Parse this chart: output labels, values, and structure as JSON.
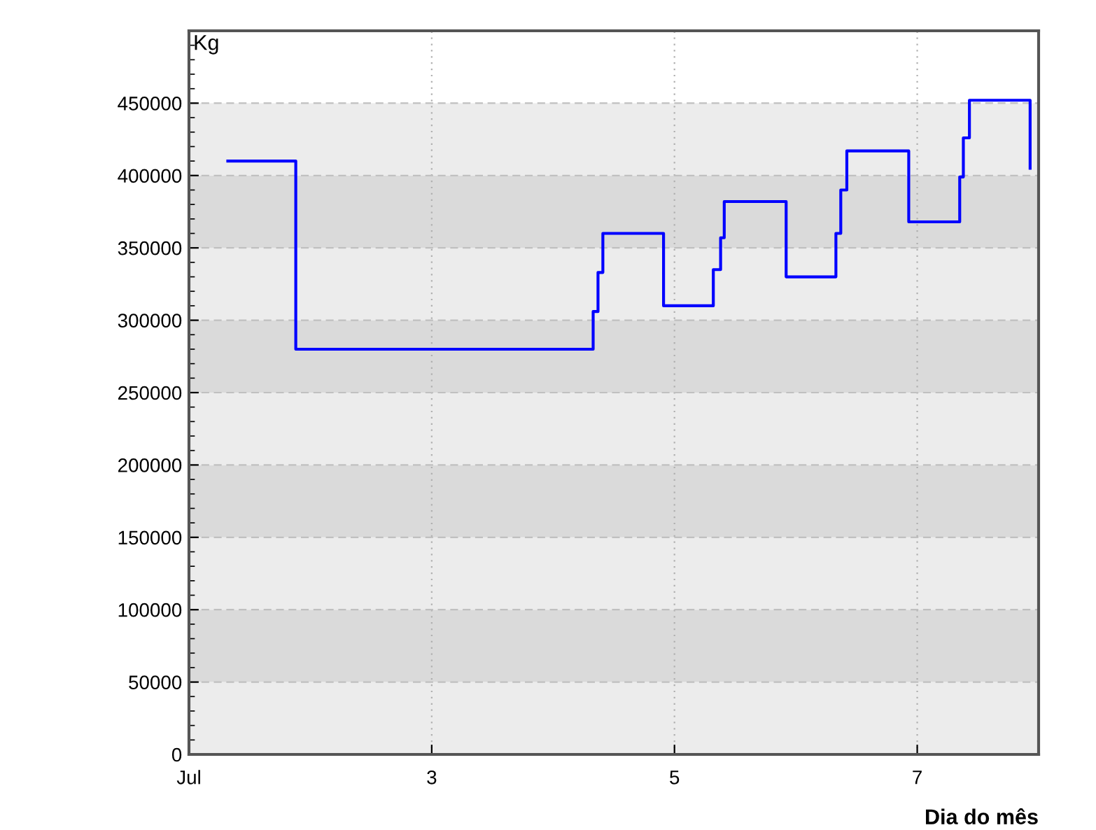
{
  "chart_data": {
    "type": "step",
    "xlabel": "Dia do mês",
    "ylabel": "Kg",
    "x": [
      1.32,
      1.88,
      4.33,
      4.37,
      4.41,
      4.91,
      5.32,
      5.38,
      5.41,
      5.92,
      6.33,
      6.37,
      6.42,
      6.93,
      7.35,
      7.38,
      7.43,
      7.93
    ],
    "series": [
      {
        "color": "#0000ff",
        "values": [
          410000,
          280000,
          306000,
          333000,
          360000,
          310000,
          335000,
          357000,
          382000,
          330000,
          360000,
          390000,
          417000,
          368000,
          399000,
          426000,
          452000,
          405000
        ]
      }
    ],
    "xlim": [
      1,
      8
    ],
    "xticks": [
      {
        "value": 1,
        "label": "Jul"
      },
      3,
      5,
      7
    ],
    "ylim": [
      0,
      500000
    ],
    "yticks": [
      0,
      50000,
      100000,
      150000,
      200000,
      250000,
      300000,
      350000,
      400000,
      450000
    ],
    "bands": [
      {
        "axis": "y",
        "from": 0,
        "to": 50000,
        "color": "#ececec"
      },
      {
        "axis": "y",
        "from": 50000,
        "to": 100000,
        "color": "#dadada"
      },
      {
        "axis": "y",
        "from": 100000,
        "to": 150000,
        "color": "#ececec"
      },
      {
        "axis": "y",
        "from": 150000,
        "to": 200000,
        "color": "#dadada"
      },
      {
        "axis": "y",
        "from": 200000,
        "to": 250000,
        "color": "#ececec"
      },
      {
        "axis": "y",
        "from": 250000,
        "to": 300000,
        "color": "#dadada"
      },
      {
        "axis": "y",
        "from": 300000,
        "to": 350000,
        "color": "#ececec"
      },
      {
        "axis": "y",
        "from": 350000,
        "to": 400000,
        "color": "#dadada"
      },
      {
        "axis": "y",
        "from": 400000,
        "to": 450000,
        "color": "#ececec"
      }
    ],
    "grid": true,
    "legend": false
  }
}
